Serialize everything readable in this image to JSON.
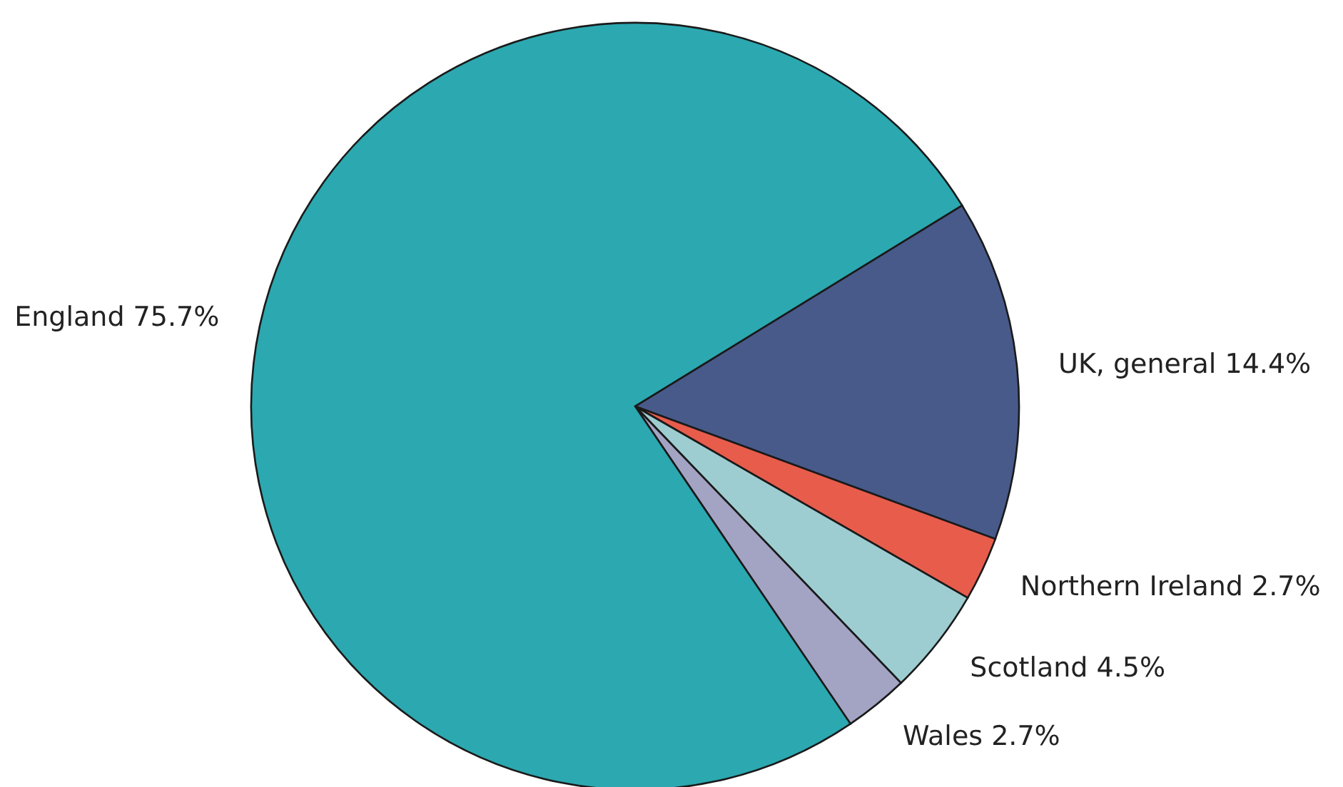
{
  "chart_data": {
    "type": "pie",
    "categories": [
      "UK, general",
      "Northern Ireland",
      "Scotland",
      "Wales",
      "England"
    ],
    "values": [
      14.4,
      2.7,
      4.5,
      2.7,
      75.7
    ],
    "value_labels": [
      "14.4%",
      "2.7%",
      "4.5%",
      "2.7%",
      "75.7%"
    ],
    "colors": [
      "#485a8a",
      "#e85c4c",
      "#9dcdd1",
      "#a3a3c4",
      "#2ca8b0"
    ]
  }
}
